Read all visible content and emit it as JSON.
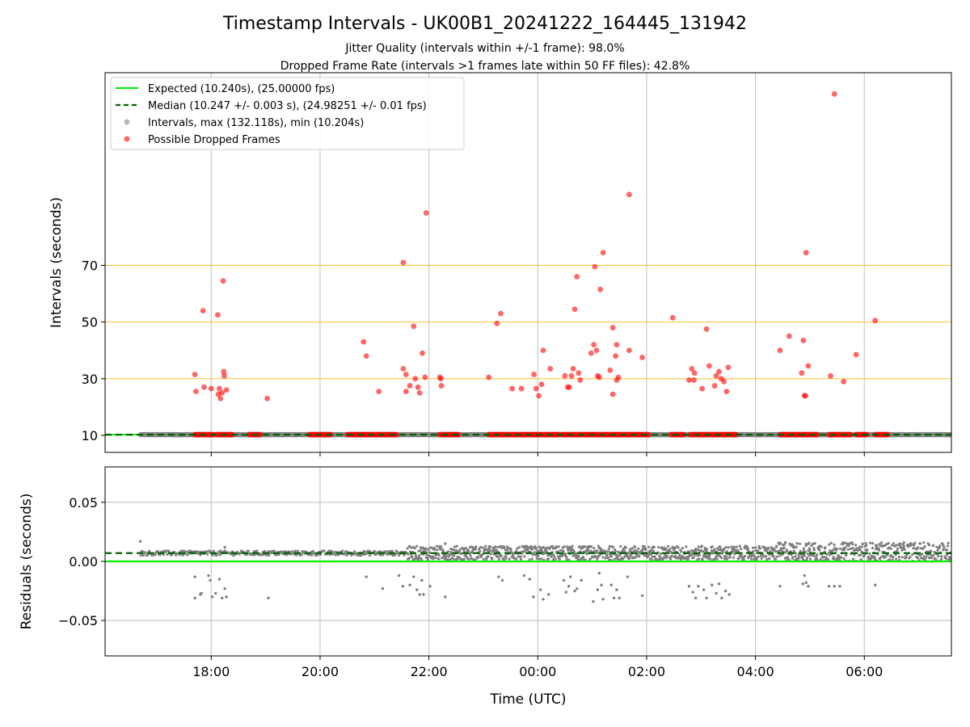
{
  "title": "Timestamp Intervals - UK00B1_20241222_164445_131942",
  "subtitle1": "Jitter Quality (intervals within +/-1 frame): 98.0%",
  "subtitle2": "Dropped Frame Rate (intervals >1 frames late within 50 FF files): 42.8%",
  "colors": {
    "expected": "#00ee00",
    "median": "#006400",
    "intervals": "#7f7f7f",
    "dropped": "#ff0000",
    "threshold": "#ffb000",
    "grid": "#c8c8c8"
  },
  "chart_data": [
    {
      "type": "scatter",
      "name": "intervals-panel",
      "xlabel": "",
      "ylabel": "Intervals (seconds)",
      "x_unit": "hours since 00:00 UTC 23 Dec 2024",
      "xlim": [
        -7.95,
        7.6
      ],
      "ylim": [
        4,
        138
      ],
      "yticks": [
        10,
        30,
        50,
        70
      ],
      "ytick_labels": [
        "10",
        "30",
        "50",
        "70"
      ],
      "thresholds": [
        30,
        50,
        70
      ],
      "expected_value": 10.24,
      "median_value": 10.247,
      "legend": {
        "position": "top-left",
        "entries": [
          "Expected (10.240s), (25.00000 fps)",
          "Median (10.247 +/- 0.003 s), (24.98251 +/- 0.01 fps)",
          "Intervals, max (132.118s), min (10.204s)",
          "Possible Dropped Frames"
        ]
      },
      "baseline_intervals_range": [
        -7.3,
        7.6
      ],
      "dropped_baseline_segments": [
        [
          -6.3,
          -5.95
        ],
        [
          -5.9,
          -5.6
        ],
        [
          -5.3,
          -5.1
        ],
        [
          -4.2,
          -3.8
        ],
        [
          -3.5,
          -2.6
        ],
        [
          -1.8,
          -1.45
        ],
        [
          -0.9,
          0.4
        ],
        [
          0.45,
          2.05
        ],
        [
          2.45,
          2.7
        ],
        [
          2.8,
          3.65
        ],
        [
          4.45,
          5.15
        ],
        [
          5.35,
          5.75
        ],
        [
          5.85,
          6.05
        ],
        [
          6.2,
          6.45
        ]
      ],
      "dropped_points": [
        {
          "x": -6.3,
          "y": 31.5
        },
        {
          "x": -6.28,
          "y": 25.5
        },
        {
          "x": -6.15,
          "y": 54
        },
        {
          "x": -6.13,
          "y": 27
        },
        {
          "x": -6.0,
          "y": 26.5
        },
        {
          "x": -5.88,
          "y": 52.5
        },
        {
          "x": -5.87,
          "y": 24.5
        },
        {
          "x": -5.85,
          "y": 26.5
        },
        {
          "x": -5.83,
          "y": 23
        },
        {
          "x": -5.8,
          "y": 25
        },
        {
          "x": -5.78,
          "y": 64.5
        },
        {
          "x": -5.77,
          "y": 32.5
        },
        {
          "x": -5.76,
          "y": 31
        },
        {
          "x": -5.72,
          "y": 26
        },
        {
          "x": -4.97,
          "y": 23
        },
        {
          "x": -3.2,
          "y": 43
        },
        {
          "x": -3.15,
          "y": 38
        },
        {
          "x": -2.92,
          "y": 25.5
        },
        {
          "x": -2.47,
          "y": 71
        },
        {
          "x": -2.47,
          "y": 33.5
        },
        {
          "x": -2.42,
          "y": 31.5
        },
        {
          "x": -2.42,
          "y": 25.5
        },
        {
          "x": -2.35,
          "y": 27.5
        },
        {
          "x": -2.28,
          "y": 48.5
        },
        {
          "x": -2.25,
          "y": 30
        },
        {
          "x": -2.2,
          "y": 27
        },
        {
          "x": -2.17,
          "y": 25
        },
        {
          "x": -2.12,
          "y": 39
        },
        {
          "x": -2.07,
          "y": 30.5
        },
        {
          "x": -2.05,
          "y": 88.5
        },
        {
          "x": -1.8,
          "y": 30.5
        },
        {
          "x": -1.78,
          "y": 30
        },
        {
          "x": -1.77,
          "y": 27.5
        },
        {
          "x": -0.9,
          "y": 30.5
        },
        {
          "x": -0.75,
          "y": 49.5
        },
        {
          "x": -0.68,
          "y": 53
        },
        {
          "x": -0.47,
          "y": 26.5
        },
        {
          "x": -0.3,
          "y": 26.5
        },
        {
          "x": -0.07,
          "y": 31.5
        },
        {
          "x": -0.03,
          "y": 26.5
        },
        {
          "x": 0.02,
          "y": 24
        },
        {
          "x": 0.07,
          "y": 28
        },
        {
          "x": 0.1,
          "y": 40
        },
        {
          "x": 0.23,
          "y": 33.5
        },
        {
          "x": 0.5,
          "y": 31
        },
        {
          "x": 0.55,
          "y": 27
        },
        {
          "x": 0.58,
          "y": 27
        },
        {
          "x": 0.62,
          "y": 31
        },
        {
          "x": 0.65,
          "y": 33.5
        },
        {
          "x": 0.68,
          "y": 54.5
        },
        {
          "x": 0.72,
          "y": 66
        },
        {
          "x": 0.75,
          "y": 32
        },
        {
          "x": 0.78,
          "y": 29.5
        },
        {
          "x": 0.98,
          "y": 39
        },
        {
          "x": 1.03,
          "y": 42
        },
        {
          "x": 1.05,
          "y": 69.5
        },
        {
          "x": 1.08,
          "y": 40
        },
        {
          "x": 1.1,
          "y": 31
        },
        {
          "x": 1.13,
          "y": 30.5
        },
        {
          "x": 1.15,
          "y": 61.5
        },
        {
          "x": 1.2,
          "y": 74.5
        },
        {
          "x": 1.33,
          "y": 33
        },
        {
          "x": 1.38,
          "y": 24.5
        },
        {
          "x": 1.38,
          "y": 48
        },
        {
          "x": 1.43,
          "y": 38
        },
        {
          "x": 1.45,
          "y": 42
        },
        {
          "x": 1.45,
          "y": 29.5
        },
        {
          "x": 1.48,
          "y": 30.5
        },
        {
          "x": 1.68,
          "y": 40
        },
        {
          "x": 1.68,
          "y": 95
        },
        {
          "x": 1.92,
          "y": 37.5
        },
        {
          "x": 2.48,
          "y": 51.5
        },
        {
          "x": 2.78,
          "y": 29.5
        },
        {
          "x": 2.83,
          "y": 33.5
        },
        {
          "x": 2.87,
          "y": 29.5
        },
        {
          "x": 2.88,
          "y": 32
        },
        {
          "x": 3.02,
          "y": 26.5
        },
        {
          "x": 3.1,
          "y": 47.5
        },
        {
          "x": 3.15,
          "y": 34.5
        },
        {
          "x": 3.25,
          "y": 27.5
        },
        {
          "x": 3.28,
          "y": 31
        },
        {
          "x": 3.33,
          "y": 32.5
        },
        {
          "x": 3.37,
          "y": 30
        },
        {
          "x": 3.42,
          "y": 29
        },
        {
          "x": 3.47,
          "y": 25.5
        },
        {
          "x": 3.5,
          "y": 34
        },
        {
          "x": 4.45,
          "y": 40
        },
        {
          "x": 4.62,
          "y": 45
        },
        {
          "x": 4.85,
          "y": 32
        },
        {
          "x": 4.88,
          "y": 43.5
        },
        {
          "x": 4.9,
          "y": 24
        },
        {
          "x": 4.92,
          "y": 24
        },
        {
          "x": 4.93,
          "y": 74.5
        },
        {
          "x": 4.97,
          "y": 34.5
        },
        {
          "x": 5.38,
          "y": 31
        },
        {
          "x": 5.45,
          "y": 130.5
        },
        {
          "x": 5.62,
          "y": 29
        },
        {
          "x": 5.85,
          "y": 38.5
        },
        {
          "x": 6.2,
          "y": 50.5
        }
      ]
    },
    {
      "type": "scatter",
      "name": "residuals-panel",
      "xlabel": "Time (UTC)",
      "ylabel": "Residuals (seconds)",
      "x_unit": "hours since 00:00 UTC 23 Dec 2024",
      "xlim": [
        -7.95,
        7.6
      ],
      "ylim": [
        -0.08,
        0.08
      ],
      "yticks": [
        -0.05,
        0.0,
        0.05
      ],
      "ytick_labels": [
        "−0.05",
        "0.00",
        "0.05"
      ],
      "xticks": [
        -6,
        -4,
        -2,
        0,
        2,
        4,
        6
      ],
      "xtick_labels": [
        "18:00",
        "20:00",
        "22:00",
        "00:00",
        "02:00",
        "04:00",
        "06:00"
      ],
      "expected_residual": 0.0,
      "median_residual": 0.007,
      "residual_bands": [
        {
          "x_range": [
            -7.3,
            -2.4
          ],
          "center": 0.007,
          "spread": 0.002
        },
        {
          "x_range": [
            -2.4,
            4.4
          ],
          "center": 0.007,
          "spread": 0.006
        },
        {
          "x_range": [
            4.4,
            7.6
          ],
          "center": 0.008,
          "spread": 0.008
        }
      ],
      "negative_residuals": [
        {
          "x": -6.3,
          "y": -0.013
        },
        {
          "x": -6.3,
          "y": -0.031
        },
        {
          "x": -6.2,
          "y": -0.028
        },
        {
          "x": -6.18,
          "y": -0.027
        },
        {
          "x": -6.05,
          "y": -0.012
        },
        {
          "x": -6.02,
          "y": -0.016
        },
        {
          "x": -5.98,
          "y": -0.03
        },
        {
          "x": -5.92,
          "y": -0.027
        },
        {
          "x": -5.85,
          "y": -0.015
        },
        {
          "x": -5.8,
          "y": -0.031
        },
        {
          "x": -5.75,
          "y": -0.023
        },
        {
          "x": -5.72,
          "y": -0.03
        },
        {
          "x": -4.95,
          "y": -0.031
        },
        {
          "x": -3.15,
          "y": -0.013
        },
        {
          "x": -2.85,
          "y": -0.023
        },
        {
          "x": -2.55,
          "y": -0.012
        },
        {
          "x": -2.48,
          "y": -0.021
        },
        {
          "x": -2.35,
          "y": -0.02
        },
        {
          "x": -2.28,
          "y": -0.013
        },
        {
          "x": -2.22,
          "y": -0.024
        },
        {
          "x": -2.17,
          "y": -0.028
        },
        {
          "x": -2.13,
          "y": -0.016
        },
        {
          "x": -2.1,
          "y": -0.028
        },
        {
          "x": -1.98,
          "y": -0.021
        },
        {
          "x": -1.7,
          "y": -0.03
        },
        {
          "x": -0.72,
          "y": -0.013
        },
        {
          "x": -0.65,
          "y": -0.016
        },
        {
          "x": -0.25,
          "y": -0.012
        },
        {
          "x": -0.15,
          "y": -0.015
        },
        {
          "x": -0.08,
          "y": -0.03
        },
        {
          "x": 0.05,
          "y": -0.024
        },
        {
          "x": 0.1,
          "y": -0.032
        },
        {
          "x": 0.2,
          "y": -0.028
        },
        {
          "x": 0.48,
          "y": -0.016
        },
        {
          "x": 0.52,
          "y": -0.026
        },
        {
          "x": 0.57,
          "y": -0.021
        },
        {
          "x": 0.6,
          "y": -0.013
        },
        {
          "x": 0.68,
          "y": -0.025
        },
        {
          "x": 0.72,
          "y": -0.023
        },
        {
          "x": 0.8,
          "y": -0.016
        },
        {
          "x": 1.02,
          "y": -0.034
        },
        {
          "x": 1.1,
          "y": -0.024
        },
        {
          "x": 1.13,
          "y": -0.01
        },
        {
          "x": 1.17,
          "y": -0.02
        },
        {
          "x": 1.2,
          "y": -0.032
        },
        {
          "x": 1.35,
          "y": -0.02
        },
        {
          "x": 1.4,
          "y": -0.031
        },
        {
          "x": 1.45,
          "y": -0.024
        },
        {
          "x": 1.5,
          "y": -0.031
        },
        {
          "x": 1.65,
          "y": -0.013
        },
        {
          "x": 1.92,
          "y": -0.029
        },
        {
          "x": 2.78,
          "y": -0.021
        },
        {
          "x": 2.85,
          "y": -0.026
        },
        {
          "x": 2.9,
          "y": -0.031
        },
        {
          "x": 2.95,
          "y": -0.021
        },
        {
          "x": 3.05,
          "y": -0.024
        },
        {
          "x": 3.1,
          "y": -0.031
        },
        {
          "x": 3.2,
          "y": -0.02
        },
        {
          "x": 3.28,
          "y": -0.027
        },
        {
          "x": 3.33,
          "y": -0.019
        },
        {
          "x": 3.38,
          "y": -0.031
        },
        {
          "x": 3.45,
          "y": -0.025
        },
        {
          "x": 3.52,
          "y": -0.028
        },
        {
          "x": 4.45,
          "y": -0.021
        },
        {
          "x": 4.87,
          "y": -0.019
        },
        {
          "x": 4.9,
          "y": -0.012
        },
        {
          "x": 4.93,
          "y": -0.018
        },
        {
          "x": 4.97,
          "y": -0.021
        },
        {
          "x": 5.35,
          "y": -0.021
        },
        {
          "x": 5.45,
          "y": -0.021
        },
        {
          "x": 5.55,
          "y": -0.021
        },
        {
          "x": 6.2,
          "y": -0.02
        }
      ],
      "positive_outliers": [
        {
          "x": -7.3,
          "y": 0.017
        },
        {
          "x": -5.75,
          "y": 0.012
        },
        {
          "x": -1.7,
          "y": 0.015
        },
        {
          "x": 4.55,
          "y": 0.016
        }
      ]
    }
  ]
}
